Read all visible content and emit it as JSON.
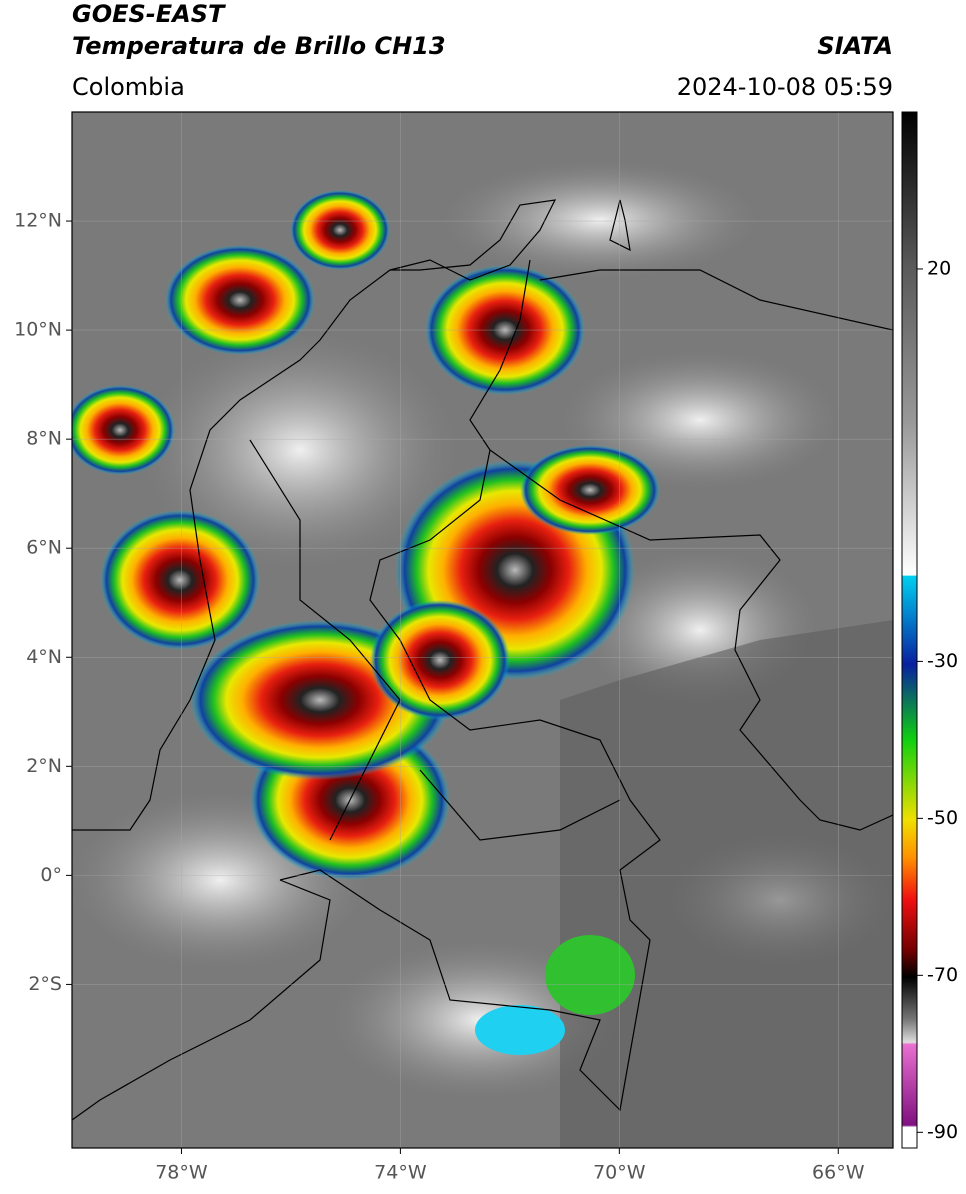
{
  "header": {
    "title": "GOES-EAST",
    "subtitle": "Temperatura de Brillo CH13",
    "region": "Colombia",
    "source": "SIATA",
    "datetime": "2024-10-08 05:59"
  },
  "map": {
    "xlim": [
      -80,
      -65
    ],
    "ylim": [
      -5,
      14
    ],
    "xticks": [
      {
        "value": -78,
        "label": "78°W"
      },
      {
        "value": -74,
        "label": "74°W"
      },
      {
        "value": -70,
        "label": "70°W"
      },
      {
        "value": -66,
        "label": "66°W"
      }
    ],
    "yticks": [
      {
        "value": 12,
        "label": "12°N"
      },
      {
        "value": 10,
        "label": "10°N"
      },
      {
        "value": 8,
        "label": "8°N"
      },
      {
        "value": 6,
        "label": "6°N"
      },
      {
        "value": 4,
        "label": "4°N"
      },
      {
        "value": 2,
        "label": "2°N"
      },
      {
        "value": 0,
        "label": "0°"
      },
      {
        "value": -2,
        "label": "2°S"
      }
    ]
  },
  "colorbar": {
    "lim": [
      -92,
      40
    ],
    "ticks": [
      20,
      -30,
      -50,
      -70,
      -90
    ]
  }
}
